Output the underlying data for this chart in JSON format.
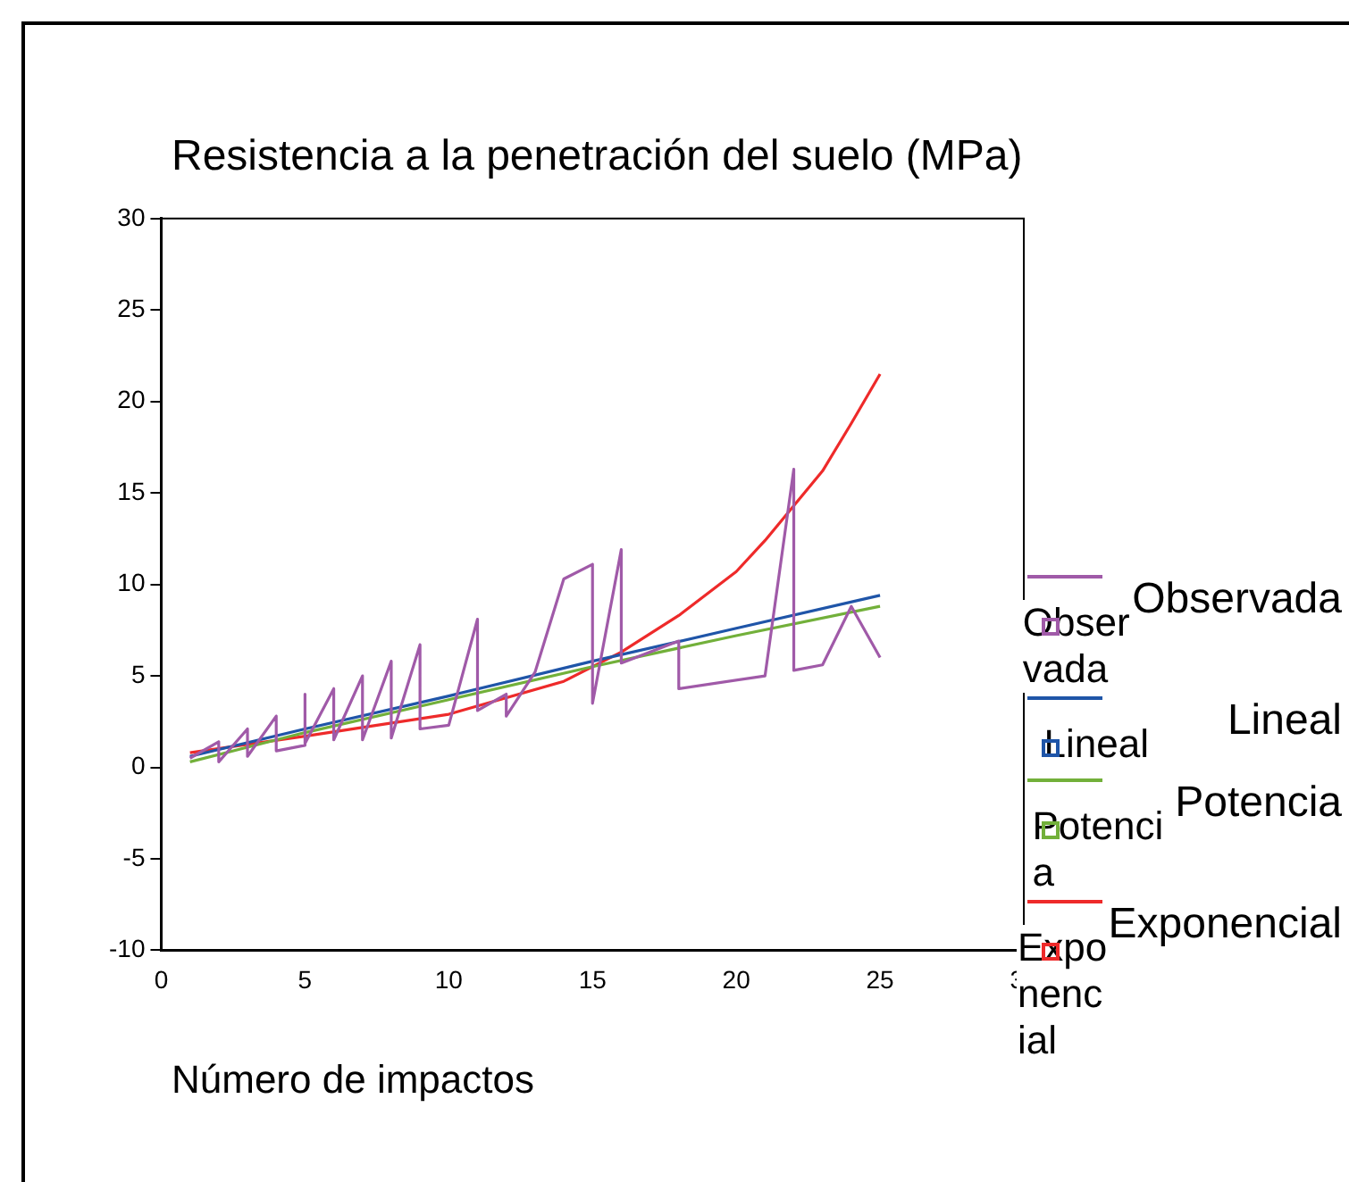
{
  "chart_data": {
    "type": "line",
    "ylabel": "Resistencia a la penetración del suelo (MPa)",
    "xlabel": "Número de impactos",
    "xlim": [
      0,
      30
    ],
    "ylim": [
      -10,
      30
    ],
    "xticks": [
      0,
      5,
      10,
      15,
      20,
      25,
      30
    ],
    "yticks": [
      -10,
      -5,
      0,
      5,
      10,
      15,
      20,
      25,
      30
    ],
    "legend": "right",
    "grid": false,
    "series": [
      {
        "name": "Observada",
        "color": "#a05aa8",
        "x": [
          1,
          2,
          2,
          3,
          3,
          4,
          4,
          5,
          5,
          5,
          6,
          6,
          7,
          7,
          8,
          8,
          9,
          9,
          10,
          10,
          11,
          11,
          12,
          12,
          13,
          14,
          15,
          15,
          16,
          16,
          18,
          18,
          21,
          22,
          22,
          23,
          24,
          25
        ],
        "values": [
          0.5,
          1.4,
          0.3,
          2.1,
          0.6,
          2.8,
          0.9,
          1.2,
          4.0,
          1.3,
          4.3,
          1.5,
          5.0,
          1.5,
          5.8,
          1.6,
          6.7,
          2.1,
          2.3,
          2.3,
          8.1,
          3.1,
          4.0,
          2.8,
          5.2,
          10.3,
          11.1,
          3.5,
          11.9,
          5.7,
          6.9,
          4.3,
          5.0,
          16.3,
          5.3,
          5.6,
          8.8,
          6.0
        ]
      },
      {
        "name": "Lineal",
        "color": "#1f55a8",
        "x": [
          1,
          5,
          10,
          15,
          20,
          25
        ],
        "values": [
          0.6,
          2.1,
          3.9,
          5.8,
          7.6,
          9.4
        ]
      },
      {
        "name": "Potencia",
        "color": "#72b03a",
        "x": [
          1,
          5,
          10,
          15,
          20,
          25
        ],
        "values": [
          0.3,
          1.9,
          3.7,
          5.5,
          7.2,
          8.8
        ]
      },
      {
        "name": "Exponencial",
        "color": "#ee2a2a",
        "x": [
          1,
          5,
          10,
          14,
          16,
          18,
          20,
          21,
          22,
          23,
          24,
          25
        ],
        "values": [
          0.8,
          1.7,
          2.9,
          4.7,
          6.3,
          8.3,
          10.7,
          12.4,
          14.3,
          16.2,
          18.8,
          21.5
        ]
      }
    ]
  }
}
